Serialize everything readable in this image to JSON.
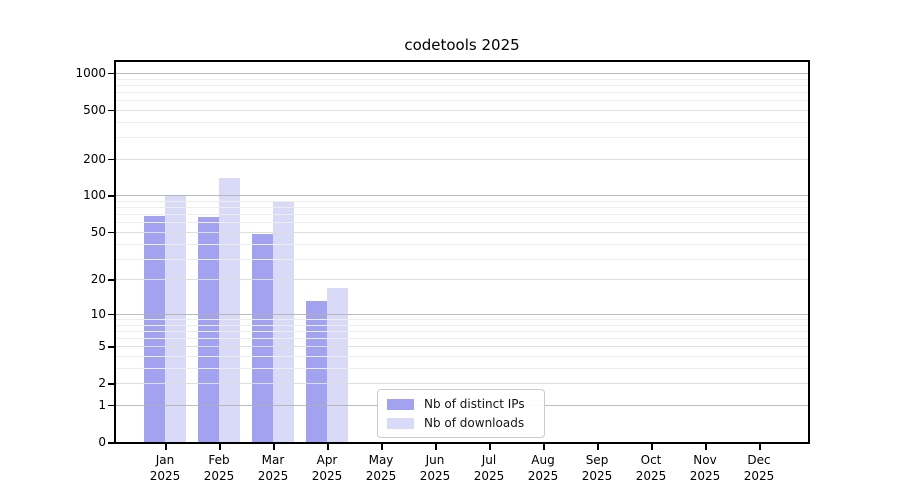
{
  "chart_data": {
    "type": "bar",
    "title": "codetools 2025",
    "categories": [
      "Jan 2025",
      "Feb 2025",
      "Mar 2025",
      "Apr 2025",
      "May 2025",
      "Jun 2025",
      "Jul 2025",
      "Aug 2025",
      "Sep 2025",
      "Oct 2025",
      "Nov 2025",
      "Dec 2025"
    ],
    "series": [
      {
        "name": "Nb of distinct IPs",
        "color": "#a2a2f0",
        "values": [
          68,
          67,
          48,
          13,
          0,
          0,
          0,
          0,
          0,
          0,
          0,
          0
        ]
      },
      {
        "name": "Nb of downloads",
        "color": "#d9d9f8",
        "values": [
          100,
          140,
          90,
          17,
          0,
          0,
          0,
          0,
          0,
          0,
          0,
          0
        ]
      }
    ],
    "y_ticks": [
      0,
      1,
      2,
      5,
      10,
      20,
      50,
      100,
      200,
      500,
      1000
    ],
    "y_scale": "log1p",
    "ylim": [
      0,
      1200
    ],
    "grid": true,
    "legend_position": "lower center",
    "colors": {
      "axis": "#000000",
      "grid_major": "#b0b0b0",
      "grid_minor_labeled": "#dedede",
      "grid_minor": "#ededed",
      "text": "#000000"
    }
  }
}
